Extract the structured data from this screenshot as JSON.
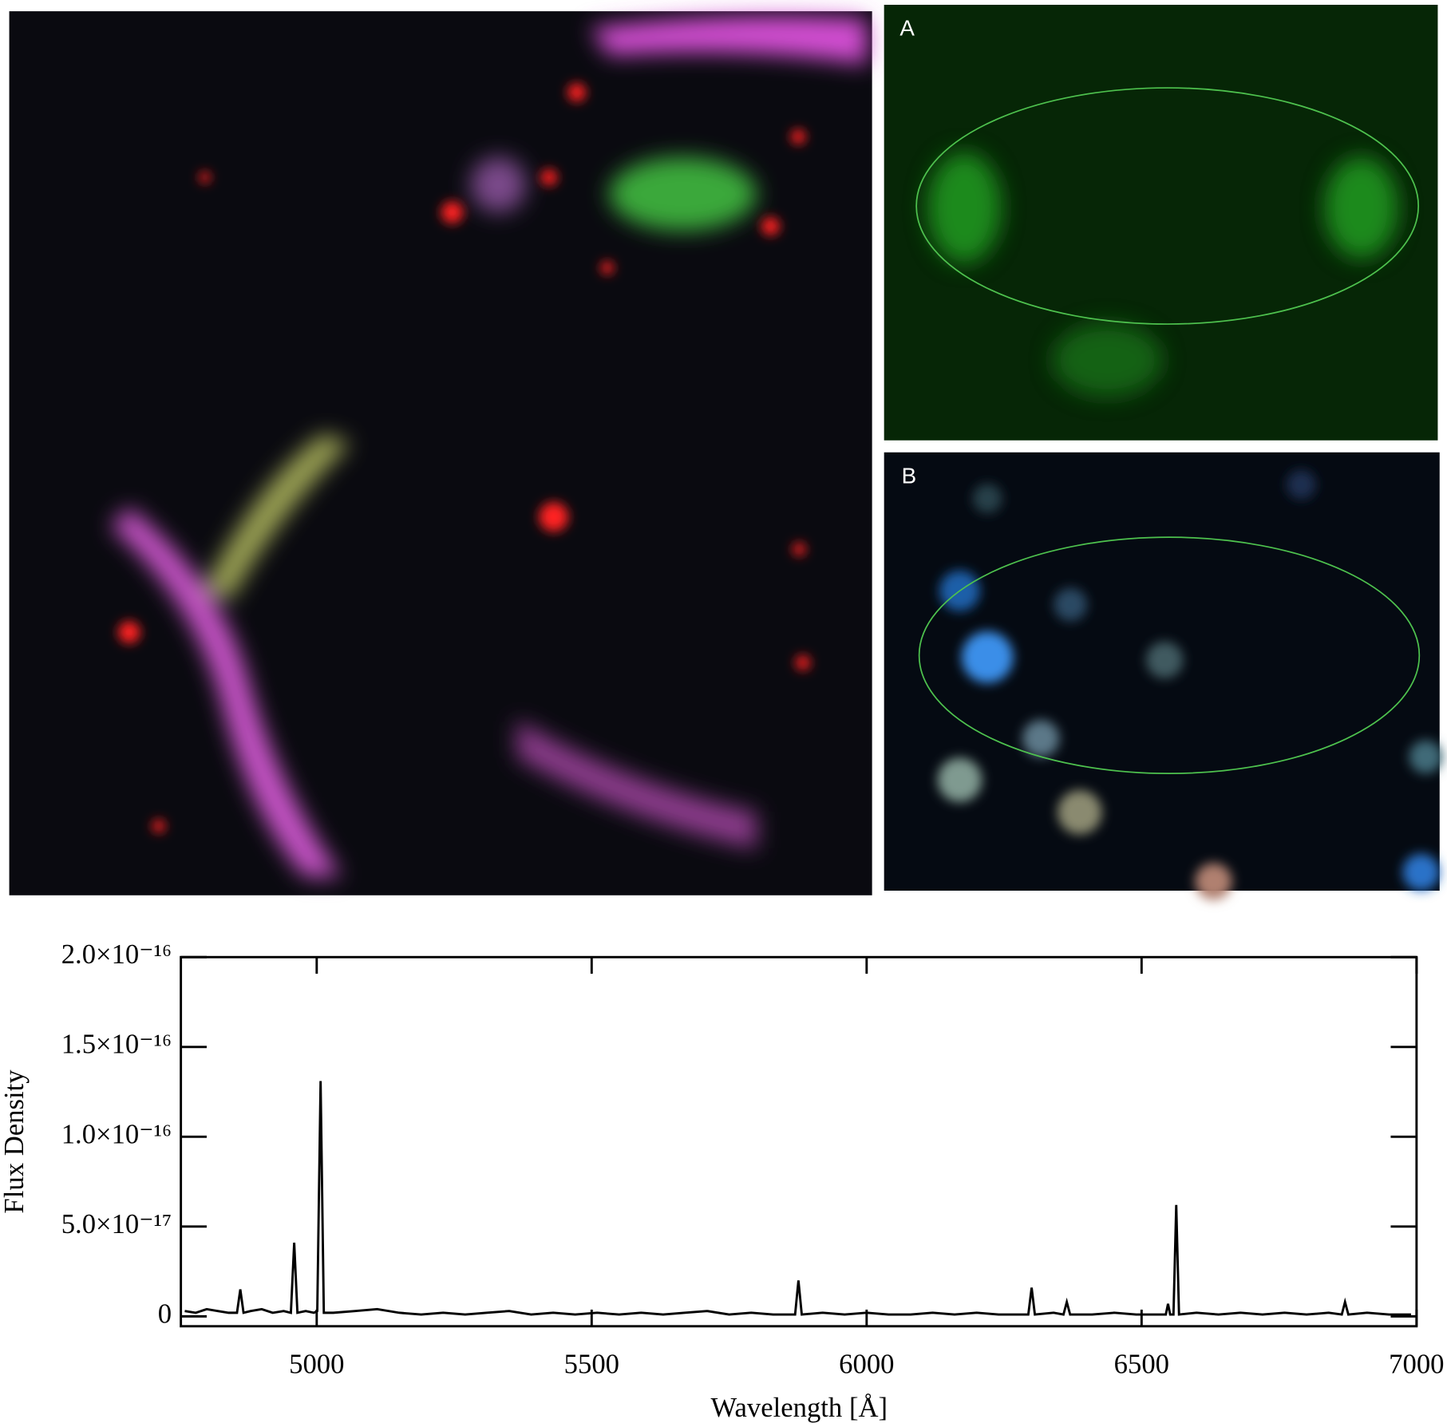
{
  "panels": [
    {
      "label": "A"
    },
    {
      "label": "B"
    }
  ],
  "chart_data": {
    "type": "line",
    "xlabel": "Wavelength [Å]",
    "ylabel": "Flux Density",
    "color": "#000000",
    "xlim": [
      4753,
      7000
    ],
    "ylim": [
      -5.5e-18,
      2e-16
    ],
    "xticks": [
      5000,
      5500,
      6000,
      6500,
      7000
    ],
    "yticks": [
      0,
      {
        "value": 5e-17,
        "label": "5.0×10⁻¹⁷"
      },
      {
        "value": 1e-16,
        "label": "1.0×10⁻¹⁶"
      },
      {
        "value": 1.5e-16,
        "label": "1.5×10⁻¹⁶"
      },
      {
        "value": 2e-16,
        "label": "2.0×10⁻¹⁶"
      }
    ],
    "x": [
      4760,
      4780,
      4800,
      4820,
      4840,
      4855,
      4861,
      4867,
      4880,
      4900,
      4920,
      4940,
      4953,
      4959,
      4965,
      4980,
      4995,
      5001,
      5007,
      5013,
      5030,
      5070,
      5110,
      5150,
      5190,
      5230,
      5270,
      5310,
      5350,
      5390,
      5430,
      5470,
      5510,
      5550,
      5590,
      5630,
      5670,
      5710,
      5750,
      5790,
      5830,
      5870,
      5876,
      5882,
      5920,
      5960,
      6000,
      6040,
      6080,
      6120,
      6160,
      6200,
      6240,
      6280,
      6294,
      6300,
      6306,
      6340,
      6358,
      6364,
      6370,
      6410,
      6450,
      6490,
      6544,
      6548,
      6552,
      6558,
      6563,
      6568,
      6600,
      6640,
      6680,
      6720,
      6760,
      6800,
      6840,
      6864,
      6870,
      6876,
      6910,
      6950,
      6990
    ],
    "values": [
      3e-18,
      2e-18,
      4e-18,
      3e-18,
      2e-18,
      2e-18,
      1.5e-17,
      2e-18,
      3e-18,
      4e-18,
      2e-18,
      3e-18,
      2e-18,
      4.1e-17,
      2e-18,
      3e-18,
      2e-18,
      3e-18,
      1.31e-16,
      2e-18,
      2e-18,
      3e-18,
      4e-18,
      2e-18,
      1e-18,
      2e-18,
      1e-18,
      2e-18,
      3e-18,
      1e-18,
      2e-18,
      1e-18,
      2e-18,
      1e-18,
      2e-18,
      1e-18,
      2e-18,
      3e-18,
      1e-18,
      2e-18,
      1e-18,
      1e-18,
      2e-17,
      1e-18,
      2e-18,
      1e-18,
      2e-18,
      1e-18,
      1e-18,
      2e-18,
      1e-18,
      2e-18,
      1e-18,
      1e-18,
      1e-18,
      1.6e-17,
      1e-18,
      2e-18,
      1e-18,
      8e-18,
      1e-18,
      1e-18,
      2e-18,
      1e-18,
      1e-18,
      7e-18,
      1e-18,
      1e-18,
      6.2e-17,
      1e-18,
      2e-18,
      1e-18,
      2e-18,
      1e-18,
      2e-18,
      1e-18,
      2e-18,
      1e-18,
      8e-18,
      1e-18,
      2e-18,
      1e-18,
      1e-18
    ]
  }
}
